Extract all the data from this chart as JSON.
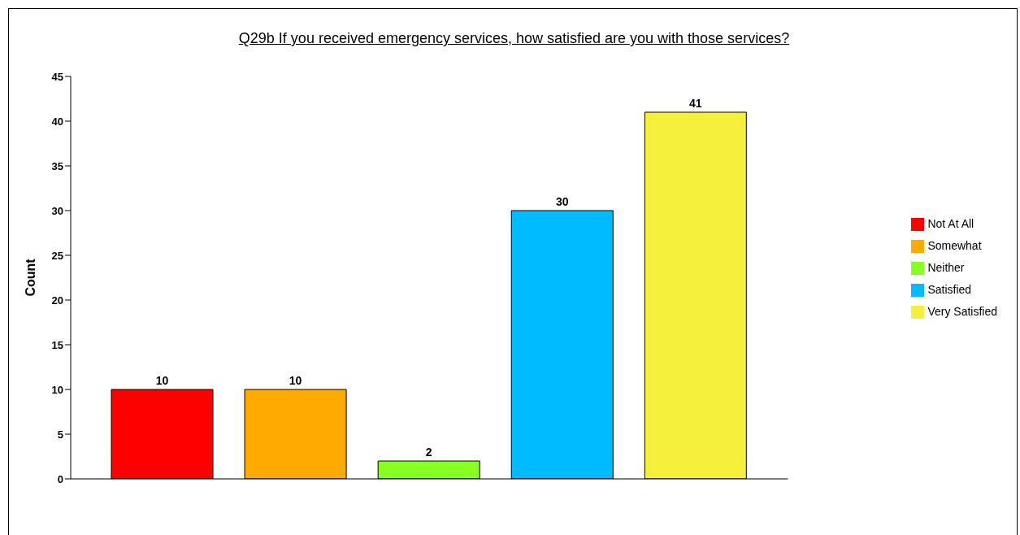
{
  "chart_data": {
    "type": "bar",
    "title": "Q29b If you received emergency services, how satisfied are you with those services?",
    "ylabel": "Count",
    "categories": [
      null,
      null,
      null,
      null,
      null
    ],
    "series": [
      {
        "name": "Not At All",
        "color": "#ff0000",
        "values": [
          10,
          null,
          null,
          null,
          null
        ]
      },
      {
        "name": "Somewhat",
        "color": "#ffaa00",
        "values": [
          null,
          10,
          null,
          null,
          null
        ]
      },
      {
        "name": "Neither",
        "color": "#88ff22",
        "values": [
          null,
          null,
          2,
          null,
          null
        ]
      },
      {
        "name": "Satisfied",
        "color": "#00bbff",
        "values": [
          null,
          null,
          null,
          30,
          null
        ]
      },
      {
        "name": "Very Satisfied",
        "color": "#f4f03c",
        "values": [
          null,
          null,
          null,
          null,
          41
        ]
      }
    ],
    "ylim": [
      0,
      45
    ],
    "yticks": [
      0,
      5,
      10,
      15,
      20,
      25,
      30,
      35,
      40,
      45
    ],
    "data_labels": true,
    "legend": "right",
    "tick_labels": "y"
  }
}
